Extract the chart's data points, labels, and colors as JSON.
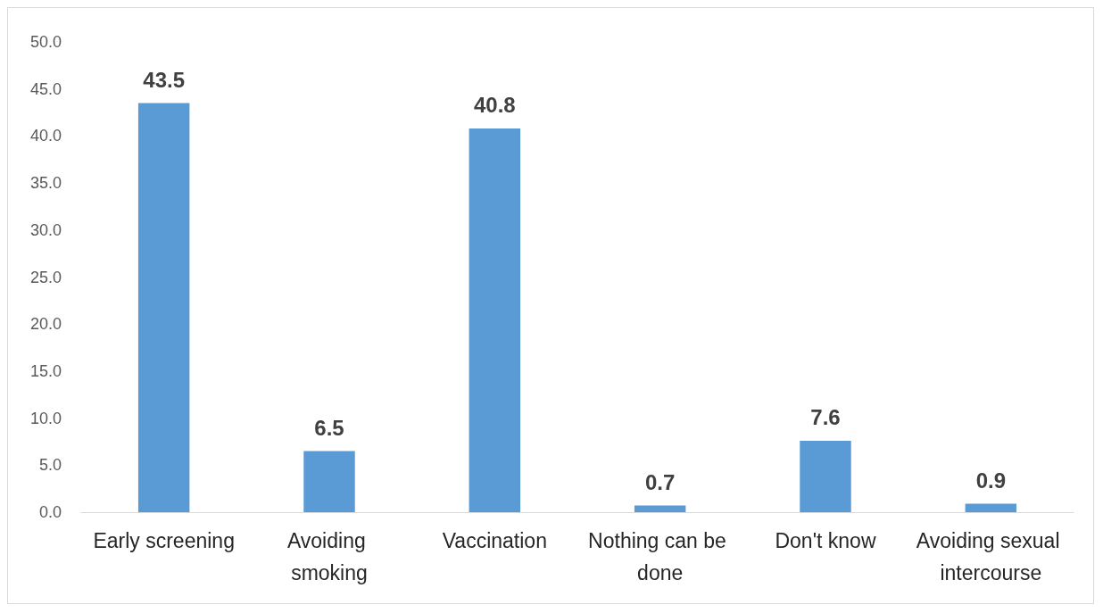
{
  "chart_data": {
    "type": "bar",
    "categories": [
      "Early screening",
      "Avoiding smoking",
      "Vaccination",
      "Nothing can be done",
      "Don't know",
      "Avoiding sexual intercourse"
    ],
    "values": [
      43.5,
      6.5,
      40.8,
      0.7,
      7.6,
      0.9
    ],
    "color": "#5b9bd5",
    "ylim": [
      0,
      50
    ],
    "yticks": [
      {
        "value": 0,
        "label": "0.0"
      },
      {
        "value": 5,
        "label": "5.0"
      },
      {
        "value": 10,
        "label": "10.0"
      },
      {
        "value": 15,
        "label": "15.0"
      },
      {
        "value": 20,
        "label": "20.0"
      },
      {
        "value": 25,
        "label": "25.0"
      },
      {
        "value": 30,
        "label": "30.0"
      },
      {
        "value": 35,
        "label": "35.0"
      },
      {
        "value": 40,
        "label": "40.0"
      },
      {
        "value": 45,
        "label": "45.0"
      },
      {
        "value": 50,
        "label": "50.0"
      }
    ],
    "data_labels": true,
    "grid": false
  }
}
